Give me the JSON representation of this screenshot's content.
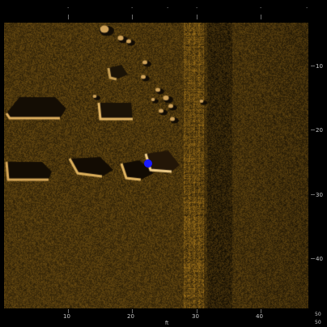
{
  "viewer": {
    "top_ruler_labels": [
      "·",
      "·",
      "·",
      "·",
      "·",
      "·"
    ],
    "right_ruler_labels": [
      "10",
      "20",
      "30",
      "40"
    ],
    "bottom_ruler_labels": [
      "10",
      "20",
      "30",
      "40"
    ],
    "bottom_axis_unit": "ft",
    "corner_labels": [
      "50",
      "50"
    ]
  },
  "colors": {
    "background": "#000000",
    "sonar_base": "#4a3410",
    "target_marker": "#1a1aff",
    "ruler_text": "#c8c8c8"
  },
  "icons": {
    "target_marker": "target-marker-icon"
  }
}
